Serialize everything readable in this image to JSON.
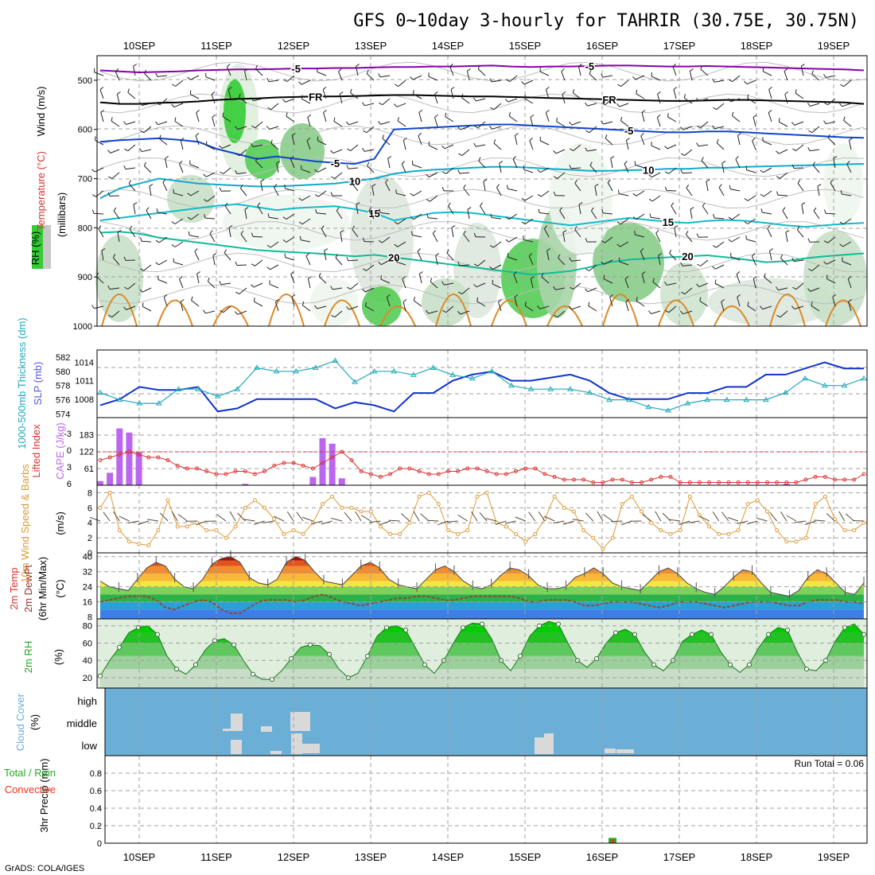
{
  "title": "GFS 0~10day 3-hourly for TAHRIR (30.75E, 30.75N)",
  "credit": "GrADS: COLA/IGES",
  "colors": {
    "rh_green": "#33cc33",
    "wind_purple": "#8800aa",
    "temp_blue": "#1144cc",
    "temp_cyan": "#11aacc",
    "temp_teal": "#11bb99",
    "temp_orange": "#dd8822",
    "slp_blue": "#1133cc",
    "thick_cyan": "#22aabb",
    "cape_purple": "#bb66ee",
    "li_red": "#dd3333",
    "wind10_orange": "#dd9933",
    "cloud_blue": "#6baed6",
    "cloud_gray": "#d9d9d9",
    "rain_green": "#22aa22",
    "conv_red": "#ee3322"
  },
  "x_ticks": [
    "10SEP",
    "11SEP",
    "12SEP",
    "13SEP",
    "14SEP",
    "15SEP",
    "16SEP",
    "17SEP",
    "18SEP",
    "19SEP"
  ],
  "chart_data": [
    {
      "type": "heatmap",
      "name": "upper-air",
      "ylabel_parts": [
        "Wind (m/s)",
        "Temperature (°C)",
        "RH (%)",
        "(millibars)"
      ],
      "yticks": [
        500,
        600,
        700,
        800,
        900,
        1000
      ],
      "ylim": [
        450,
        1000
      ],
      "temp_contours": [
        {
          "label": "-5",
          "color": "#8800aa",
          "p": [
            480,
            482,
            484,
            483,
            482,
            480,
            479,
            478,
            478,
            477,
            476,
            476,
            475,
            475,
            474,
            473,
            473,
            472,
            472,
            471,
            470,
            472,
            473,
            472,
            472,
            471,
            470,
            470,
            471,
            472,
            472,
            471,
            472,
            473,
            474,
            475,
            476,
            477,
            478,
            480
          ]
        },
        {
          "label": "FR",
          "color": "#000000",
          "p": [
            545,
            548,
            548,
            546,
            545,
            543,
            540,
            538,
            537,
            535,
            534,
            533,
            533,
            532,
            531,
            530,
            530,
            531,
            532,
            533,
            533,
            534,
            535,
            536,
            537,
            538,
            539,
            540,
            541,
            542,
            542,
            541,
            540,
            540,
            541,
            542,
            543,
            544,
            545,
            548
          ]
        },
        {
          "label": "-5",
          "color": "#1144cc",
          "p": [
            625,
            622,
            620,
            618,
            621,
            625,
            640,
            650,
            660,
            655,
            660,
            665,
            668,
            670,
            660,
            600,
            598,
            596,
            594,
            592,
            590,
            590,
            592,
            594,
            596,
            598,
            600,
            602,
            604,
            606,
            606,
            604,
            604,
            606,
            608,
            610,
            612,
            614,
            616,
            617
          ]
        },
        {
          "label": "10",
          "color": "#11aacc",
          "p": [
            740,
            720,
            710,
            700,
            705,
            710,
            712,
            714,
            716,
            716,
            714,
            712,
            710,
            705,
            700,
            690,
            685,
            682,
            680,
            678,
            676,
            676,
            678,
            680,
            682,
            684,
            684,
            683,
            682,
            680,
            680,
            678,
            678,
            676,
            675,
            674,
            673,
            672,
            671,
            670
          ]
        },
        {
          "label": "15",
          "color": "#11bbcc",
          "p": [
            785,
            780,
            775,
            770,
            765,
            760,
            755,
            752,
            758,
            764,
            760,
            758,
            756,
            762,
            770,
            785,
            778,
            770,
            768,
            770,
            775,
            780,
            785,
            790,
            795,
            790,
            785,
            780,
            784,
            788,
            790,
            786,
            784,
            786,
            790,
            795,
            798,
            795,
            792,
            790
          ]
        },
        {
          "label": "20",
          "color": "#11bb99",
          "p": [
            810,
            808,
            812,
            820,
            825,
            830,
            835,
            840,
            845,
            848,
            850,
            852,
            855,
            858,
            855,
            860,
            865,
            870,
            875,
            880,
            885,
            890,
            895,
            892,
            888,
            880,
            870,
            865,
            862,
            860,
            858,
            856,
            860,
            865,
            870,
            868,
            862,
            858,
            855,
            852
          ]
        }
      ]
    },
    {
      "type": "line",
      "name": "slp-thickness",
      "ylabel": "SLP (mb)",
      "ylabel2": "1000-500mb Thickness (dm)",
      "yticks_left": [
        574,
        576,
        578,
        580,
        582
      ],
      "yticks_right": [
        1008,
        1011,
        1014
      ],
      "series": [
        {
          "name": "SLP",
          "axis": "right",
          "values": [
            1007,
            1008,
            1010,
            1009.5,
            1009.5,
            1010,
            1006,
            1006.5,
            1008,
            1008,
            1008,
            1008,
            1006.5,
            1007.5,
            1007,
            1006,
            1009,
            1009,
            1011,
            1012,
            1012.5,
            1011,
            1011,
            1011.5,
            1012,
            1011,
            1009,
            1008,
            1008,
            1008,
            1009,
            1009,
            1010,
            1010,
            1012,
            1012,
            1013,
            1014,
            1013,
            1013
          ]
        },
        {
          "name": "Thickness",
          "axis": "left",
          "values": [
            577,
            576,
            575.5,
            575.5,
            577.5,
            577.5,
            576.5,
            577.5,
            580.5,
            580,
            580,
            580.5,
            581.5,
            578.5,
            580,
            580,
            579.5,
            580.5,
            579.5,
            579,
            580,
            578,
            577.5,
            577.5,
            577.5,
            577,
            576,
            576,
            575,
            574.5,
            575.5,
            576,
            576,
            576,
            576,
            577,
            579,
            578,
            578,
            579
          ]
        }
      ]
    },
    {
      "type": "bar",
      "name": "cape-li",
      "ylabel": "CAPE (J/kg)",
      "ylabel2": "Lifted Index",
      "yticks_left": [
        "-3",
        "0",
        "3",
        "6"
      ],
      "yticks_right": [
        61,
        122,
        183
      ],
      "cape": [
        15,
        45,
        205,
        190,
        120,
        0,
        0,
        0,
        0,
        0,
        0,
        0,
        0,
        0,
        0,
        5,
        0,
        0,
        0,
        0,
        0,
        0,
        30,
        170,
        150,
        25,
        0,
        0,
        0,
        0,
        0,
        0,
        0,
        0,
        0,
        0,
        0,
        0,
        0,
        0,
        0,
        0,
        0,
        0,
        0,
        0,
        0,
        0,
        0,
        0,
        0,
        0,
        0,
        0,
        0,
        0,
        0,
        0,
        0,
        0,
        0,
        0,
        0,
        0,
        0,
        0,
        0,
        0,
        0,
        0,
        0,
        5,
        0,
        0,
        0,
        0,
        0,
        0,
        0,
        0
      ],
      "li_values": [
        1.5,
        1,
        0.5,
        0,
        0.5,
        1,
        1,
        1.5,
        2.5,
        3,
        3,
        3.5,
        4,
        4,
        3.5,
        3.5,
        4,
        3.5,
        2.5,
        2,
        2,
        2.5,
        3,
        2,
        1,
        0,
        1.5,
        3.5,
        4,
        4.5,
        4,
        3,
        3,
        3.5,
        4,
        4,
        3.5,
        3.5,
        3,
        3,
        3.5,
        4,
        4,
        3.5,
        3,
        3,
        4,
        4.5,
        5,
        5,
        5,
        5.5,
        5.5,
        5,
        5,
        5.5,
        5.5,
        5,
        4.5,
        4.5,
        5.5,
        5.5,
        5.5,
        5.5,
        5.5,
        5.5,
        5.5,
        5.5,
        5.5,
        5.5,
        5.5,
        5.5,
        5.5,
        5,
        4.5,
        4.5,
        5,
        5,
        5,
        4
      ]
    },
    {
      "type": "line",
      "name": "wind10m",
      "ylabel": "10m Wind Speed & Barbs",
      "yunit": "(m/s)",
      "yticks": [
        0,
        2,
        4,
        6,
        8
      ],
      "values": [
        6,
        8,
        3,
        1.5,
        1.2,
        1,
        3,
        7,
        3.5,
        3.5,
        4,
        3,
        3,
        2,
        3.5,
        6,
        7,
        6,
        4.5,
        2.5,
        3,
        2.5,
        4,
        6.5,
        7.5,
        6,
        6,
        5.5,
        5.5,
        3.5,
        2.5,
        2.5,
        4,
        7.5,
        8,
        6.5,
        3,
        2.5,
        3,
        7.5,
        8,
        4,
        3.5,
        2.5,
        1.5,
        2.5,
        4.5,
        7.5,
        6,
        5.5,
        3,
        2,
        0.5,
        2,
        6.5,
        7.5,
        5.5,
        4,
        3,
        2.5,
        3,
        7.5,
        5,
        3.5,
        2.5,
        2.5,
        3,
        6.5,
        7,
        5.5,
        3,
        1.5,
        1.5,
        2,
        6.5,
        7.5,
        4.5,
        3,
        3,
        4
      ]
    },
    {
      "type": "area",
      "name": "temp-dew",
      "ylabel": "2m Temp",
      "ylabel2": "2m DewPt",
      "ylabel3": "(6hr Min/Max)",
      "yunit": "(°C)",
      "yticks": [
        8,
        16,
        24,
        32,
        40
      ],
      "temp": [
        27,
        24,
        23,
        22,
        28,
        34,
        37,
        35,
        28,
        24,
        23,
        28,
        36,
        39,
        40,
        37,
        29,
        26,
        25,
        28,
        37,
        40,
        38,
        32,
        27,
        26,
        25,
        30,
        35,
        37,
        34,
        28,
        25,
        24,
        23,
        28,
        33,
        35,
        32,
        27,
        24,
        23,
        25,
        30,
        34,
        33,
        30,
        25,
        23,
        23,
        24,
        29,
        31,
        34,
        31,
        26,
        24,
        23,
        22,
        27,
        32,
        34,
        31,
        26,
        23,
        21,
        20,
        24,
        29,
        33,
        32,
        26,
        21,
        20,
        19,
        22,
        29,
        33,
        31,
        26,
        21,
        20,
        26
      ],
      "dew": [
        16,
        17,
        18,
        19,
        19,
        19,
        17,
        13,
        12,
        14,
        16,
        17,
        16,
        12,
        10,
        10,
        13,
        16,
        17,
        17,
        17,
        16,
        17,
        19,
        20,
        18,
        16,
        15,
        14,
        15,
        16,
        17,
        18,
        18,
        19,
        19,
        18,
        17,
        17,
        18,
        19,
        19,
        19,
        19,
        19,
        18,
        16,
        16,
        17,
        17,
        17,
        16,
        14,
        14,
        15,
        16,
        16,
        16,
        15,
        14,
        13,
        14,
        16,
        16,
        16,
        15,
        14,
        13,
        14,
        15,
        16,
        16,
        16,
        15,
        14,
        14,
        16,
        17,
        17,
        17,
        16,
        16,
        15
      ]
    },
    {
      "type": "area",
      "name": "rh2m",
      "ylabel": "2m RH",
      "yunit": "(%)",
      "yticks": [
        20,
        40,
        60,
        80
      ],
      "values": [
        22,
        40,
        55,
        72,
        78,
        80,
        70,
        45,
        30,
        24,
        35,
        52,
        63,
        65,
        58,
        40,
        24,
        18,
        18,
        28,
        42,
        55,
        58,
        57,
        47,
        30,
        20,
        25,
        45,
        68,
        78,
        80,
        75,
        55,
        35,
        25,
        40,
        60,
        78,
        83,
        82,
        65,
        40,
        28,
        45,
        68,
        80,
        85,
        82,
        60,
        40,
        32,
        42,
        60,
        72,
        76,
        70,
        50,
        35,
        28,
        40,
        62,
        70,
        75,
        70,
        50,
        35,
        26,
        35,
        55,
        70,
        78,
        75,
        50,
        30,
        28,
        40,
        62,
        78,
        82,
        70
      ]
    },
    {
      "type": "heatmap",
      "name": "cloud-cover",
      "ylabel": "Cloud Cover",
      "yunit": "(%)",
      "yticks": [
        "high",
        "middle",
        "low"
      ]
    },
    {
      "type": "bar",
      "name": "precip",
      "ylabel": "3hr Precip (mm)",
      "ylabel2": "Total / Rain",
      "ylabel3": "Convective",
      "yticks": [
        "0",
        "0.2",
        "0.4",
        "0.6",
        "0.8"
      ],
      "run_total": "Run Total = 0.06",
      "series": [
        {
          "name": "Total / Rain",
          "values": [
            0,
            0,
            0,
            0,
            0,
            0,
            0,
            0,
            0,
            0,
            0,
            0,
            0,
            0,
            0,
            0,
            0,
            0,
            0,
            0,
            0,
            0,
            0,
            0,
            0,
            0,
            0,
            0,
            0,
            0,
            0,
            0,
            0,
            0,
            0,
            0,
            0,
            0,
            0,
            0,
            0,
            0,
            0,
            0,
            0,
            0,
            0,
            0,
            0,
            0,
            0,
            0,
            0,
            0.06,
            0,
            0,
            0,
            0,
            0,
            0,
            0,
            0,
            0,
            0,
            0,
            0,
            0,
            0,
            0,
            0,
            0,
            0,
            0,
            0,
            0,
            0,
            0,
            0,
            0,
            0
          ]
        },
        {
          "name": "Convective",
          "values": [
            0,
            0,
            0,
            0,
            0,
            0,
            0,
            0,
            0,
            0,
            0,
            0,
            0,
            0,
            0,
            0,
            0,
            0,
            0,
            0,
            0,
            0,
            0,
            0,
            0,
            0,
            0,
            0,
            0,
            0,
            0,
            0,
            0,
            0,
            0,
            0,
            0,
            0,
            0,
            0,
            0,
            0,
            0,
            0,
            0,
            0,
            0,
            0,
            0,
            0,
            0,
            0,
            0,
            0.04,
            0,
            0,
            0,
            0,
            0,
            0,
            0,
            0,
            0,
            0,
            0,
            0,
            0,
            0,
            0,
            0,
            0,
            0,
            0,
            0,
            0,
            0,
            0,
            0,
            0,
            0
          ]
        }
      ]
    }
  ]
}
